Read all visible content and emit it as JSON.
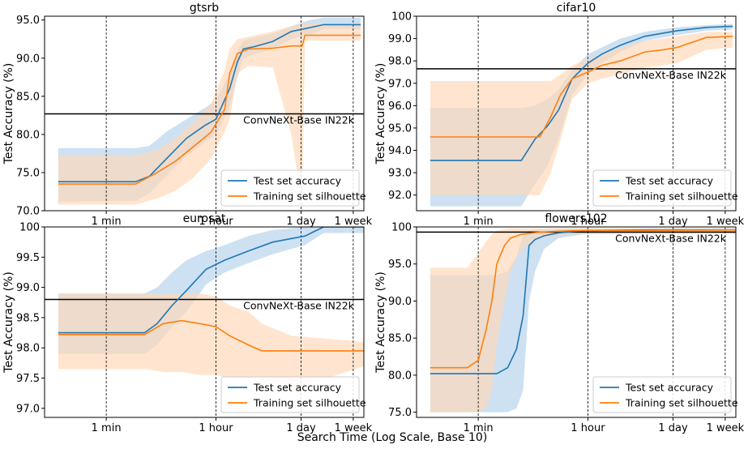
{
  "figure": {
    "xlabel": "Search Time (Log Scale, Base 10)"
  },
  "colors": {
    "test": "#1f77b4",
    "train": "#ff7f0e",
    "test_band": "#bcd7ee",
    "train_band": "#ffd7b5",
    "reference": "#000000"
  },
  "chart_data": [
    {
      "type": "line",
      "title": "gtsrb",
      "ylabel": "Test Accuracy (%)",
      "xticks": [
        {
          "x": 60,
          "label": "1 min"
        },
        {
          "x": 3600,
          "label": "1 hour"
        },
        {
          "x": 86400,
          "label": "1 day"
        },
        {
          "x": 604800,
          "label": "1 week"
        }
      ],
      "xlim": [
        6,
        900000
      ],
      "ylim": [
        70,
        95.5
      ],
      "yticks": [
        70.0,
        75.0,
        80.0,
        85.0,
        90.0,
        95.0
      ],
      "ytick_labels": [
        "70.0",
        "75.0",
        "80.0",
        "85.0",
        "90.0",
        "95.0"
      ],
      "reference": {
        "label": "ConvNeXt-Base IN22k",
        "y": 82.7
      },
      "legend": {
        "position": "lower-right"
      },
      "series": [
        {
          "name": "Test set accuracy",
          "x": [
            10,
            180,
            300,
            600,
            1200,
            2400,
            3600,
            6000,
            8000,
            10000,
            15000,
            30000,
            60000,
            120000,
            200000,
            800000
          ],
          "y": [
            73.8,
            73.8,
            74.5,
            77,
            79.5,
            81.2,
            82,
            86,
            89.5,
            91.2,
            91.5,
            92.2,
            93.5,
            94,
            94.4,
            94.4
          ],
          "lower": [
            71.2,
            71.3,
            72.3,
            74.8,
            77.2,
            79,
            80,
            83.5,
            87.5,
            90,
            90.5,
            91.2,
            92.5,
            93,
            93.8,
            93.8
          ],
          "upper": [
            78.2,
            78.2,
            78.5,
            80.5,
            82,
            83.5,
            84.5,
            88,
            91,
            92.3,
            92.7,
            93.2,
            94.2,
            95,
            95.3,
            95.3
          ]
        },
        {
          "name": "Training set silhouette",
          "x": [
            10,
            180,
            400,
            800,
            1500,
            3000,
            5000,
            6000,
            8000,
            12000,
            30000,
            60000,
            90000,
            100000,
            800000
          ],
          "y": [
            73.5,
            73.5,
            75,
            76.5,
            78.3,
            80.3,
            83.3,
            88,
            90.6,
            91.2,
            91.3,
            91.6,
            91.6,
            93,
            93
          ],
          "lower": [
            70.8,
            70.8,
            71.6,
            72.6,
            74.2,
            76.8,
            80.4,
            82,
            88,
            89,
            88.8,
            80,
            70.8,
            92.3,
            92.3
          ],
          "upper": [
            77.3,
            77.3,
            78,
            79.5,
            81.5,
            84,
            88.5,
            91.2,
            92.5,
            92.8,
            93.5,
            94.2,
            94.5,
            94.5,
            94.5
          ]
        }
      ]
    },
    {
      "type": "line",
      "title": "cifar10",
      "ylabel": "Test Accuracy (%)",
      "xticks": [
        {
          "x": 60,
          "label": "1 min"
        },
        {
          "x": 3600,
          "label": "1 hour"
        },
        {
          "x": 86400,
          "label": "1 day"
        },
        {
          "x": 604800,
          "label": "1 week"
        }
      ],
      "xlim": [
        6,
        900000
      ],
      "ylim": [
        91.3,
        100
      ],
      "yticks": [
        92.0,
        93.0,
        94.0,
        95.0,
        96.0,
        97.0,
        98.0,
        99.0,
        100
      ],
      "ytick_labels": [
        "92.0",
        "93.0",
        "94.0",
        "95.0",
        "96.0",
        "97.0",
        "98.0",
        "99.0",
        "100"
      ],
      "reference": {
        "label": "ConvNeXt-Base IN22k",
        "y": 97.65
      },
      "legend": {
        "position": "lower-right"
      },
      "series": [
        {
          "name": "Test set accuracy",
          "x": [
            10,
            300,
            500,
            800,
            1200,
            2000,
            3600,
            6000,
            12000,
            30000,
            100000,
            300000,
            800000
          ],
          "y": [
            93.55,
            93.55,
            94.5,
            95.1,
            95.8,
            97.2,
            97.9,
            98.3,
            98.7,
            99.1,
            99.35,
            99.5,
            99.55
          ],
          "lower": [
            91.5,
            91.5,
            92.5,
            93.3,
            94.5,
            96.5,
            97.4,
            97.9,
            98.4,
            98.9,
            99.15,
            99.35,
            99.4
          ],
          "upper": [
            95.9,
            95.9,
            96,
            96.3,
            96.7,
            97.6,
            98.3,
            98.6,
            99,
            99.3,
            99.5,
            99.6,
            99.65
          ]
        },
        {
          "name": "Training set silhouette",
          "x": [
            10,
            600,
            900,
            1300,
            2000,
            3600,
            6000,
            12000,
            30000,
            60000,
            100000,
            300000,
            800000
          ],
          "y": [
            94.6,
            94.6,
            95.5,
            96.5,
            97.2,
            97.5,
            97.8,
            98,
            98.4,
            98.5,
            98.6,
            99.05,
            99.1
          ],
          "lower": [
            92,
            92,
            93,
            94.5,
            96.3,
            97,
            97.2,
            97.4,
            97.7,
            97.8,
            97.9,
            98.5,
            98.6
          ],
          "upper": [
            97.1,
            97.1,
            97.1,
            97.4,
            97.8,
            98.1,
            98.3,
            98.6,
            98.9,
            99,
            99.1,
            99.3,
            99.3
          ]
        }
      ]
    },
    {
      "type": "line",
      "title": "eurosat",
      "ylabel": "Test Accuracy (%)",
      "xticks": [
        {
          "x": 60,
          "label": "1 min"
        },
        {
          "x": 3600,
          "label": "1 hour"
        },
        {
          "x": 86400,
          "label": "1 day"
        },
        {
          "x": 604800,
          "label": "1 week"
        }
      ],
      "xlim": [
        6,
        900000
      ],
      "ylim": [
        96.85,
        100
      ],
      "yticks": [
        97.0,
        97.5,
        98.0,
        98.5,
        99.0,
        99.5,
        100
      ],
      "ytick_labels": [
        "97.0",
        "97.5",
        "98.0",
        "98.5",
        "99.0",
        "99.5",
        "100"
      ],
      "reference": {
        "label": "ConvNeXt-Base IN22k",
        "y": 98.8
      },
      "legend": {
        "position": "lower-right"
      },
      "series": [
        {
          "name": "Test set accuracy",
          "x": [
            10,
            250,
            400,
            700,
            1200,
            2500,
            5000,
            12000,
            30000,
            100000,
            200000,
            900000
          ],
          "y": [
            98.25,
            98.25,
            98.4,
            98.7,
            98.95,
            99.3,
            99.45,
            99.6,
            99.75,
            99.85,
            100,
            100
          ],
          "lower": [
            97.9,
            97.9,
            98.05,
            98.35,
            98.6,
            99.05,
            99.25,
            99.4,
            99.55,
            99.7,
            99.9,
            99.9
          ],
          "upper": [
            98.9,
            98.9,
            99,
            99.25,
            99.45,
            99.6,
            99.7,
            99.85,
            99.95,
            100,
            100,
            100
          ]
        },
        {
          "name": "Training set silhouette",
          "x": [
            10,
            250,
            500,
            1000,
            2000,
            3600,
            6000,
            12000,
            20000,
            60000,
            900000
          ],
          "y": [
            98.22,
            98.22,
            98.4,
            98.45,
            98.4,
            98.35,
            98.2,
            98.05,
            97.95,
            97.95,
            97.95
          ],
          "lower": [
            97.65,
            97.65,
            97.6,
            97.6,
            97.55,
            97.55,
            97.5,
            97.5,
            97.5,
            97.3,
            97.7
          ],
          "upper": [
            98.9,
            98.9,
            98.9,
            98.9,
            98.9,
            98.85,
            98.7,
            98.6,
            98.4,
            98.2,
            98.1
          ]
        }
      ]
    },
    {
      "type": "line",
      "title": "flowers102",
      "ylabel": "Test Accuracy (%)",
      "xticks": [
        {
          "x": 60,
          "label": "1 min"
        },
        {
          "x": 3600,
          "label": "1 hour"
        },
        {
          "x": 86400,
          "label": "1 day"
        },
        {
          "x": 604800,
          "label": "1 week"
        }
      ],
      "xlim": [
        6,
        900000
      ],
      "ylim": [
        74.3,
        100
      ],
      "yticks": [
        75.0,
        80.0,
        85.0,
        90.0,
        95.0,
        100
      ],
      "ytick_labels": [
        "75.0",
        "80.0",
        "85.0",
        "90.0",
        "95.0",
        "100"
      ],
      "reference": {
        "label": "ConvNeXt-Base IN22k",
        "y": 99.3
      },
      "legend": {
        "position": "lower-right"
      },
      "series": [
        {
          "name": "Test set accuracy",
          "x": [
            10,
            120,
            180,
            250,
            320,
            400,
            500,
            700,
            1200,
            3000,
            30000,
            900000
          ],
          "y": [
            80.2,
            80.2,
            81,
            83.5,
            88,
            97.5,
            98.3,
            98.8,
            99.2,
            99.5,
            99.6,
            99.6
          ],
          "lower": [
            75,
            75,
            75,
            75.5,
            78,
            90,
            94,
            97,
            98.5,
            99,
            99.1,
            99.1
          ],
          "upper": [
            93.5,
            93.5,
            94,
            96,
            99,
            99.5,
            99.6,
            99.7,
            99.8,
            99.8,
            99.8,
            99.8
          ]
        },
        {
          "name": "Training set silhouette",
          "x": [
            10,
            40,
            60,
            80,
            100,
            120,
            160,
            200,
            300,
            600,
            2000,
            900000
          ],
          "y": [
            81,
            81,
            82,
            86,
            90,
            95,
            97.5,
            98.5,
            99,
            99.3,
            99.5,
            99.6
          ],
          "lower": [
            75,
            75,
            75,
            75.5,
            78,
            84,
            90,
            94,
            97,
            98.5,
            99,
            99.1
          ],
          "upper": [
            94.5,
            94.5,
            96.5,
            98,
            99,
            99.5,
            99.7,
            99.8,
            99.8,
            99.8,
            99.8,
            99.8
          ]
        }
      ]
    }
  ]
}
